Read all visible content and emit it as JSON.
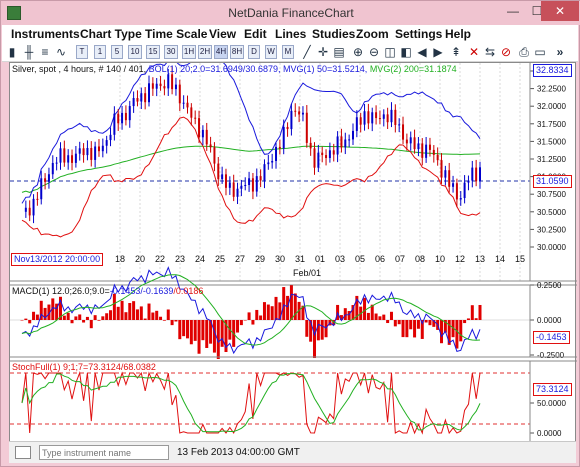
{
  "window": {
    "title": "NetDania FinanceChart",
    "minimize": "—",
    "maximize": "☐",
    "close": "✕"
  },
  "menu": [
    "Instruments",
    "Chart Type",
    "Time Scale",
    "View",
    "Edit",
    "Lines",
    "Studies",
    "Zoom",
    "Settings",
    "Help"
  ],
  "toolbar": {
    "scales": [
      "T",
      "1",
      "5",
      "10",
      "15",
      "30",
      "1H",
      "2H",
      "4H",
      "8H",
      "D",
      "W",
      "M"
    ],
    "more": "»"
  },
  "price_panel": {
    "header": "Silver, spot , 4 hours, # 140 / 401,",
    "bol": "BOL(1) 20;2.0=31.6949/30.6879,",
    "mvg1": "MVG(1) 50=31.5214,",
    "mvg2": "MVG(2) 200=31.1874",
    "price_top_badge": "32.8334",
    "price_badge": "31.0590",
    "date_badge": "Nov13/2012 20:00:00",
    "month_label": "Feb/01",
    "y_ticks": [
      "32.5000",
      "32.2500",
      "32.0000",
      "31.7500",
      "31.5000",
      "31.2500",
      "31.0000",
      "30.7500",
      "30.5000",
      "30.2500",
      "30.0000"
    ],
    "x_ticks": [
      "18",
      "20",
      "22",
      "23",
      "24",
      "25",
      "27",
      "29",
      "30",
      "31",
      "01",
      "03",
      "05",
      "06",
      "07",
      "08",
      "10",
      "12",
      "13",
      "14",
      "15"
    ]
  },
  "macd_panel": {
    "label_prefix": "MACD(1) 12.0;26.0;9.0=",
    "v1": "-0.1453",
    "v2": "/-0.1639",
    "v3": "/0.0186",
    "y_ticks": [
      "0.2500",
      "0.0000",
      "-0.2500"
    ],
    "badge": "-0.1453"
  },
  "stoch_panel": {
    "label": "StochFull(1) 9;1;7=73.3124/68.0382",
    "y_ticks": [
      "50.0000",
      "0.0000"
    ],
    "badge": "73.3124"
  },
  "status": {
    "placeholder": "Type instrument name",
    "datetime": "13 Feb 2013 04:00:00 GMT"
  },
  "colors": {
    "up": "#0000cc",
    "down": "#cc0000",
    "bol_upper": "#1a1adc",
    "bol_lower": "#e01010",
    "mvg": "#22b022",
    "macd_hist": "#e00000"
  },
  "chart_data": {
    "type": "candlestick",
    "instrument": "Silver, spot",
    "interval": "4 hours",
    "ylim": [
      30.0,
      32.5
    ],
    "last_price": 31.059,
    "bollinger": {
      "period": 20,
      "width": 2.0,
      "upper": 31.6949,
      "lower": 30.6879
    },
    "mvg50": 31.5214,
    "mvg200": 31.1874,
    "close_path": [
      30.45,
      30.6,
      30.9,
      31.2,
      31.3,
      31.25,
      31.4,
      31.3,
      31.5,
      31.8,
      31.9,
      32.1,
      32.2,
      32.3,
      32.35,
      32.2,
      31.9,
      31.7,
      31.4,
      31.0,
      30.8,
      30.85,
      30.9,
      31.0,
      31.3,
      31.5,
      32.0,
      31.8,
      31.2,
      31.3,
      31.4,
      31.5,
      31.7,
      31.9,
      31.8,
      31.9,
      31.75,
      31.5,
      31.4,
      31.4,
      31.2,
      30.9,
      30.7,
      31.0,
      31.1
    ],
    "macd": {
      "macd": -0.1453,
      "signal": -0.1639,
      "hist": 0.0186,
      "ylim": [
        -0.25,
        0.25
      ]
    },
    "stoch": {
      "k": 73.3124,
      "d": 68.0382,
      "ylim": [
        0,
        100
      ]
    }
  }
}
